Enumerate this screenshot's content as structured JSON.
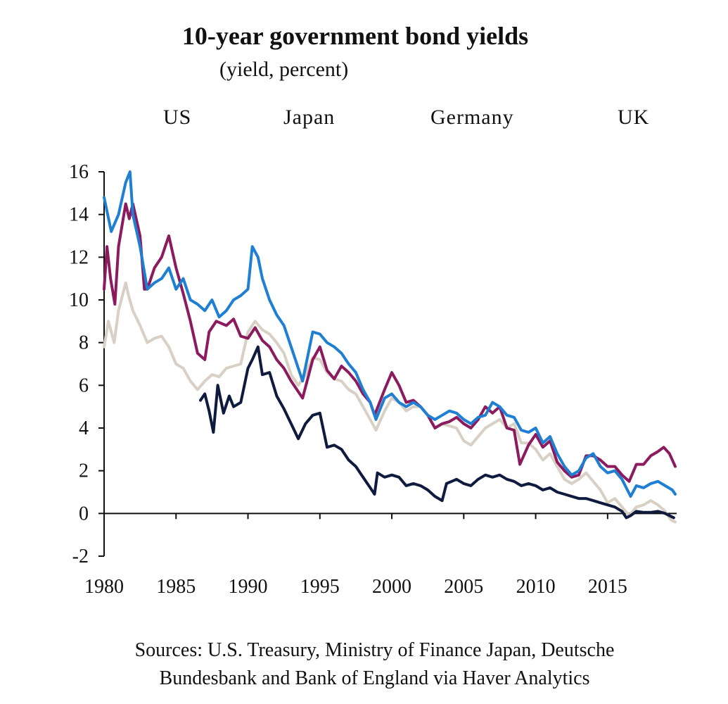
{
  "chart_data": {
    "type": "line",
    "title": "10-year government bond yields",
    "subtitle": "(yield, percent)",
    "xlabel": "",
    "ylabel": "",
    "xlim": [
      1980,
      2019.8
    ],
    "ylim": [
      -2,
      16
    ],
    "yticks": [
      -2,
      0,
      2,
      4,
      6,
      8,
      10,
      12,
      14,
      16
    ],
    "ytick_labels": [
      "-2",
      "0",
      "2",
      "4",
      "6",
      "8",
      "10",
      "12",
      "14",
      "16"
    ],
    "xticks": [
      1980,
      1985,
      1990,
      1995,
      2000,
      2005,
      2010,
      2015
    ],
    "xtick_labels": [
      "1980",
      "1985",
      "1990",
      "1995",
      "2000",
      "2005",
      "2010",
      "2015"
    ],
    "legend_position": "top",
    "series": [
      {
        "name": "US",
        "color": "#8c1a5e",
        "x": [
          1980.0,
          1980.2,
          1980.45,
          1980.75,
          1981.0,
          1981.5,
          1981.75,
          1982.0,
          1982.5,
          1982.8,
          1983.0,
          1983.5,
          1984.0,
          1984.5,
          1985.0,
          1985.5,
          1986.0,
          1986.5,
          1987.0,
          1987.3,
          1987.8,
          1988.5,
          1989.0,
          1989.5,
          1990.0,
          1990.5,
          1991.0,
          1991.5,
          1992.0,
          1992.5,
          1993.0,
          1993.8,
          1994.5,
          1995.0,
          1995.5,
          1996.0,
          1996.5,
          1997.0,
          1997.5,
          1998.0,
          1998.5,
          1998.8,
          1999.5,
          2000.0,
          2000.5,
          2001.0,
          2001.5,
          2002.0,
          2002.5,
          2003.0,
          2003.5,
          2004.0,
          2004.5,
          2005.0,
          2005.5,
          2006.0,
          2006.5,
          2007.0,
          2007.5,
          2008.0,
          2008.5,
          2008.9,
          2009.5,
          2010.0,
          2010.5,
          2011.0,
          2011.5,
          2012.0,
          2012.5,
          2013.0,
          2013.5,
          2014.0,
          2014.5,
          2015.0,
          2015.5,
          2016.0,
          2016.5,
          2017.0,
          2017.5,
          2018.0,
          2018.5,
          2018.9,
          2019.3,
          2019.7
        ],
        "values": [
          10.5,
          12.5,
          11.0,
          9.8,
          12.5,
          14.5,
          13.8,
          14.5,
          13.0,
          10.5,
          10.5,
          11.5,
          12.0,
          13.0,
          11.5,
          10.3,
          9.0,
          7.5,
          7.2,
          8.5,
          9.0,
          8.8,
          9.1,
          8.3,
          8.2,
          8.7,
          8.1,
          7.8,
          7.2,
          6.8,
          6.2,
          5.4,
          7.2,
          7.8,
          6.7,
          6.3,
          6.9,
          6.6,
          6.2,
          5.6,
          5.2,
          4.6,
          5.8,
          6.6,
          6.0,
          5.2,
          5.3,
          5.0,
          4.6,
          4.0,
          4.2,
          4.3,
          4.5,
          4.2,
          4.0,
          4.4,
          5.0,
          4.7,
          5.0,
          4.0,
          3.9,
          2.3,
          3.2,
          3.7,
          3.1,
          3.4,
          2.4,
          2.0,
          1.7,
          1.8,
          2.7,
          2.7,
          2.5,
          2.2,
          2.2,
          1.8,
          1.5,
          2.3,
          2.3,
          2.7,
          2.9,
          3.1,
          2.8,
          2.2
        ]
      },
      {
        "name": "Japan",
        "color": "#0f1a3f",
        "x": [
          1986.7,
          1987.0,
          1987.3,
          1987.6,
          1987.9,
          1988.3,
          1988.7,
          1989.0,
          1989.5,
          1990.0,
          1990.3,
          1990.7,
          1991.0,
          1991.5,
          1992.0,
          1992.5,
          1993.0,
          1993.5,
          1994.0,
          1994.5,
          1995.0,
          1995.5,
          1996.0,
          1996.5,
          1997.0,
          1997.5,
          1998.0,
          1998.5,
          1998.8,
          1999.0,
          1999.5,
          2000.0,
          2000.5,
          2001.0,
          2001.5,
          2002.0,
          2002.5,
          2003.0,
          2003.5,
          2003.8,
          2004.5,
          2005.0,
          2005.5,
          2006.0,
          2006.5,
          2007.0,
          2007.5,
          2008.0,
          2008.5,
          2009.0,
          2009.5,
          2010.0,
          2010.5,
          2011.0,
          2011.5,
          2012.0,
          2012.5,
          2013.0,
          2013.5,
          2014.0,
          2014.5,
          2015.0,
          2015.5,
          2016.0,
          2016.3,
          2016.6,
          2017.0,
          2017.5,
          2018.0,
          2018.5,
          2019.0,
          2019.3,
          2019.6
        ],
        "values": [
          5.3,
          5.6,
          4.8,
          3.8,
          6.0,
          4.7,
          5.5,
          5.0,
          5.2,
          6.8,
          7.2,
          7.8,
          6.5,
          6.6,
          5.5,
          4.9,
          4.2,
          3.5,
          4.2,
          4.6,
          4.7,
          3.1,
          3.2,
          3.0,
          2.5,
          2.2,
          1.7,
          1.2,
          0.9,
          1.9,
          1.7,
          1.8,
          1.7,
          1.3,
          1.4,
          1.3,
          1.1,
          0.8,
          0.6,
          1.4,
          1.6,
          1.4,
          1.3,
          1.6,
          1.8,
          1.7,
          1.8,
          1.6,
          1.5,
          1.3,
          1.4,
          1.3,
          1.1,
          1.2,
          1.0,
          0.9,
          0.8,
          0.7,
          0.7,
          0.6,
          0.5,
          0.4,
          0.3,
          0.1,
          -0.2,
          -0.1,
          0.1,
          0.05,
          0.05,
          0.1,
          0.0,
          -0.1,
          -0.2
        ]
      },
      {
        "name": "Germany",
        "color": "#d8d0c4",
        "x": [
          1980.0,
          1980.3,
          1980.7,
          1981.0,
          1981.5,
          1981.7,
          1982.0,
          1982.5,
          1983.0,
          1983.5,
          1984.0,
          1984.5,
          1985.0,
          1985.5,
          1986.0,
          1986.5,
          1987.0,
          1987.5,
          1988.0,
          1988.5,
          1989.0,
          1989.5,
          1990.0,
          1990.5,
          1991.0,
          1991.5,
          1992.0,
          1992.5,
          1993.0,
          1993.5,
          1994.0,
          1994.5,
          1995.0,
          1995.5,
          1996.0,
          1996.5,
          1997.0,
          1997.5,
          1998.0,
          1998.5,
          1998.9,
          1999.5,
          2000.0,
          2000.5,
          2001.0,
          2001.5,
          2002.0,
          2002.5,
          2003.0,
          2003.5,
          2004.0,
          2004.5,
          2005.0,
          2005.5,
          2006.0,
          2006.5,
          2007.0,
          2007.5,
          2008.0,
          2008.5,
          2009.0,
          2009.5,
          2010.0,
          2010.5,
          2011.0,
          2011.5,
          2012.0,
          2012.5,
          2013.0,
          2013.5,
          2014.0,
          2014.5,
          2015.0,
          2015.5,
          2016.0,
          2016.5,
          2017.0,
          2017.5,
          2018.0,
          2018.5,
          2019.0,
          2019.4,
          2019.7
        ],
        "values": [
          7.8,
          9.0,
          8.0,
          9.5,
          10.8,
          10.2,
          9.5,
          8.8,
          8.0,
          8.2,
          8.3,
          7.8,
          7.0,
          6.8,
          6.2,
          5.8,
          6.2,
          6.5,
          6.4,
          6.8,
          6.9,
          7.0,
          8.5,
          9.0,
          8.6,
          8.4,
          8.0,
          7.5,
          6.5,
          6.0,
          6.5,
          7.3,
          7.2,
          6.6,
          6.3,
          6.2,
          5.8,
          5.6,
          5.0,
          4.4,
          3.9,
          4.8,
          5.4,
          5.2,
          4.8,
          5.0,
          5.0,
          4.6,
          4.0,
          4.2,
          4.1,
          4.0,
          3.4,
          3.2,
          3.6,
          4.0,
          4.2,
          4.4,
          4.0,
          4.2,
          3.3,
          3.3,
          3.0,
          2.5,
          2.8,
          2.2,
          1.6,
          1.4,
          1.6,
          1.9,
          1.5,
          1.1,
          0.5,
          0.7,
          0.3,
          -0.1,
          0.3,
          0.4,
          0.6,
          0.4,
          0.1,
          -0.3,
          -0.4
        ]
      },
      {
        "name": "UK",
        "color": "#1f7fd2",
        "x": [
          1980.0,
          1980.5,
          1981.0,
          1981.5,
          1981.8,
          1982.0,
          1982.5,
          1983.0,
          1983.5,
          1984.0,
          1984.5,
          1985.0,
          1985.5,
          1986.0,
          1986.5,
          1987.0,
          1987.5,
          1988.0,
          1988.5,
          1989.0,
          1989.5,
          1990.0,
          1990.3,
          1990.7,
          1991.0,
          1991.5,
          1992.0,
          1992.5,
          1993.0,
          1993.5,
          1993.8,
          1994.5,
          1995.0,
          1995.5,
          1996.0,
          1996.5,
          1997.0,
          1997.5,
          1998.0,
          1998.5,
          1998.9,
          1999.5,
          2000.0,
          2000.5,
          2001.0,
          2001.5,
          2002.0,
          2002.5,
          2003.0,
          2003.5,
          2004.0,
          2004.5,
          2005.0,
          2005.5,
          2006.0,
          2006.5,
          2007.0,
          2007.5,
          2008.0,
          2008.5,
          2009.0,
          2009.5,
          2010.0,
          2010.5,
          2011.0,
          2011.5,
          2012.0,
          2012.5,
          2013.0,
          2013.5,
          2014.0,
          2014.5,
          2015.0,
          2015.5,
          2016.0,
          2016.3,
          2016.6,
          2017.0,
          2017.5,
          2018.0,
          2018.5,
          2019.0,
          2019.5,
          2019.7
        ],
        "values": [
          14.8,
          13.2,
          14.0,
          15.5,
          16.0,
          14.0,
          12.5,
          10.5,
          10.8,
          11.0,
          11.5,
          10.5,
          11.0,
          10.0,
          9.8,
          9.5,
          10.0,
          9.2,
          9.5,
          10.0,
          10.2,
          10.5,
          12.5,
          12.0,
          11.0,
          10.0,
          9.3,
          8.8,
          7.8,
          6.8,
          6.2,
          8.5,
          8.4,
          8.0,
          7.8,
          7.5,
          7.0,
          6.6,
          5.8,
          5.2,
          4.4,
          5.4,
          5.6,
          5.2,
          5.0,
          5.2,
          5.0,
          4.6,
          4.4,
          4.6,
          4.8,
          4.7,
          4.4,
          4.2,
          4.5,
          4.6,
          5.2,
          5.0,
          4.6,
          4.5,
          3.9,
          3.8,
          4.0,
          3.3,
          3.6,
          2.8,
          2.2,
          1.8,
          2.0,
          2.6,
          2.8,
          2.2,
          1.9,
          2.0,
          1.6,
          1.2,
          0.8,
          1.3,
          1.2,
          1.4,
          1.5,
          1.3,
          1.1,
          0.9
        ]
      }
    ],
    "sources": {
      "line1": "Sources: U.S. Treasury, Ministry of Finance Japan, Deutsche",
      "line2": "Bundesbank and Bank of England via Haver Analytics"
    }
  }
}
